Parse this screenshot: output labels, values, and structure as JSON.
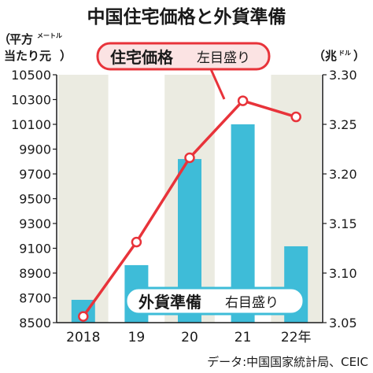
{
  "colors": {
    "line": "#e8333a",
    "bar": "#3ebcd8",
    "band": "#ebebe1",
    "line_label_fill": "#fbe3e3",
    "bar_label_fill": "#ffffff"
  },
  "chart_data": {
    "type": "bar+line",
    "title": "中国住宅価格と外貨準備",
    "categories": [
      "2018",
      "19",
      "20",
      "21",
      "22年"
    ],
    "left_axis": {
      "unit_line1": "平方",
      "unit_line1_small": "メートル",
      "unit_line2": "当たり元",
      "unit_open": "（",
      "unit_close": "）",
      "ylim": [
        8500,
        10500
      ],
      "ticks": [
        "10500",
        "10300",
        "10100",
        "9900",
        "9700",
        "9500",
        "9300",
        "9100",
        "8900",
        "8700",
        "8500"
      ]
    },
    "right_axis": {
      "unit_main": "兆",
      "unit_small": "ドル",
      "unit_open": "（",
      "unit_close": "）",
      "ylim": [
        3.05,
        3.3
      ],
      "ticks": [
        "3.30",
        "3.25",
        "3.20",
        "3.15",
        "3.10",
        "3.05"
      ]
    },
    "series": [
      {
        "name": "住宅価格",
        "axis_note": "左目盛り",
        "type": "line",
        "axis": "left",
        "values": [
          8550,
          9150,
          9830,
          10290,
          10160
        ]
      },
      {
        "name": "外貨準備",
        "axis_note": "右目盛り",
        "type": "bar",
        "axis": "right",
        "values": [
          3.073,
          3.108,
          3.215,
          3.25,
          3.127
        ]
      }
    ],
    "grid": false,
    "source": "データ:中国国家統計局、CEIC"
  }
}
